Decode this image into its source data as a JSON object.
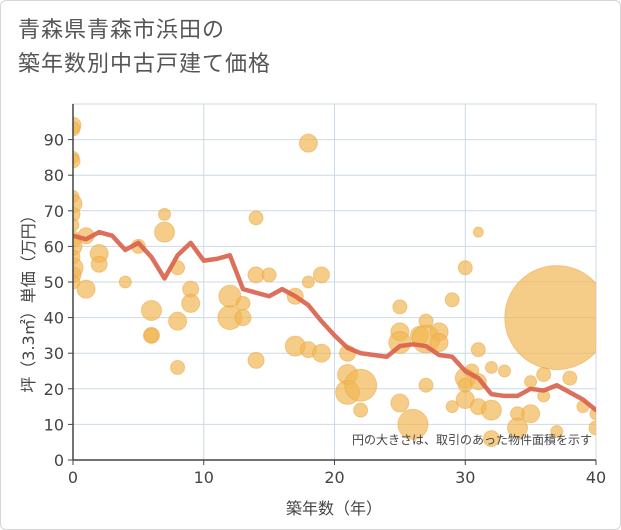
{
  "chart_data": {
    "type": "scatter",
    "title_lines": [
      "青森県青森市浜田の",
      "築年数別中古戸建て価格"
    ],
    "xlabel": "築年数（年）",
    "ylabel": "坪（3.3㎡）単価（万円）",
    "xlim": [
      0,
      40
    ],
    "ylim": [
      0,
      100
    ],
    "xticks": [
      "0",
      "10",
      "20",
      "30",
      "40"
    ],
    "yticks": [
      "0",
      "10",
      "20",
      "30",
      "40",
      "50",
      "60",
      "70",
      "80",
      "90"
    ],
    "note": "円の大きさは、取引のあった物件面積を示す",
    "colors": {
      "bubble": "#f2b54f",
      "line": "#d9604a",
      "grid": "#ccd9e6",
      "axis": "#444444"
    },
    "points": [
      {
        "x": 0,
        "y": 94,
        "s": 8
      },
      {
        "x": 0,
        "y": 93,
        "s": 7
      },
      {
        "x": 0,
        "y": 85,
        "s": 6
      },
      {
        "x": 0,
        "y": 84,
        "s": 7
      },
      {
        "x": 0,
        "y": 74,
        "s": 6
      },
      {
        "x": 0,
        "y": 72,
        "s": 9
      },
      {
        "x": 0,
        "y": 69,
        "s": 7
      },
      {
        "x": 0,
        "y": 66,
        "s": 6
      },
      {
        "x": 0,
        "y": 62,
        "s": 8
      },
      {
        "x": 0,
        "y": 60,
        "s": 9
      },
      {
        "x": 0,
        "y": 57,
        "s": 7
      },
      {
        "x": 0,
        "y": 54,
        "s": 10
      },
      {
        "x": 0,
        "y": 52,
        "s": 8
      },
      {
        "x": 0,
        "y": 50,
        "s": 7
      },
      {
        "x": 1,
        "y": 63,
        "s": 8
      },
      {
        "x": 1,
        "y": 48,
        "s": 9
      },
      {
        "x": 2,
        "y": 58,
        "s": 9
      },
      {
        "x": 2,
        "y": 55,
        "s": 8
      },
      {
        "x": 4,
        "y": 50,
        "s": 6
      },
      {
        "x": 5,
        "y": 60,
        "s": 7
      },
      {
        "x": 6,
        "y": 42,
        "s": 10
      },
      {
        "x": 6,
        "y": 35,
        "s": 8
      },
      {
        "x": 6,
        "y": 35,
        "s": 7
      },
      {
        "x": 7,
        "y": 69,
        "s": 6
      },
      {
        "x": 7,
        "y": 64,
        "s": 10
      },
      {
        "x": 8,
        "y": 54,
        "s": 7
      },
      {
        "x": 8,
        "y": 39,
        "s": 9
      },
      {
        "x": 8,
        "y": 26,
        "s": 7
      },
      {
        "x": 9,
        "y": 48,
        "s": 8
      },
      {
        "x": 9,
        "y": 44,
        "s": 9
      },
      {
        "x": 12,
        "y": 46,
        "s": 11
      },
      {
        "x": 12,
        "y": 40,
        "s": 12
      },
      {
        "x": 13,
        "y": 44,
        "s": 7
      },
      {
        "x": 13,
        "y": 40,
        "s": 8
      },
      {
        "x": 14,
        "y": 68,
        "s": 7
      },
      {
        "x": 14,
        "y": 52,
        "s": 8
      },
      {
        "x": 14,
        "y": 28,
        "s": 8
      },
      {
        "x": 15,
        "y": 52,
        "s": 7
      },
      {
        "x": 17,
        "y": 46,
        "s": 8
      },
      {
        "x": 17,
        "y": 32,
        "s": 10
      },
      {
        "x": 18,
        "y": 89,
        "s": 9
      },
      {
        "x": 18,
        "y": 50,
        "s": 6
      },
      {
        "x": 18,
        "y": 31,
        "s": 8
      },
      {
        "x": 19,
        "y": 52,
        "s": 8
      },
      {
        "x": 19,
        "y": 30,
        "s": 9
      },
      {
        "x": 21,
        "y": 30,
        "s": 8
      },
      {
        "x": 21,
        "y": 24,
        "s": 10
      },
      {
        "x": 21,
        "y": 19,
        "s": 12
      },
      {
        "x": 22,
        "y": 21,
        "s": 16
      },
      {
        "x": 22,
        "y": 14,
        "s": 7
      },
      {
        "x": 25,
        "y": 43,
        "s": 7
      },
      {
        "x": 25,
        "y": 36,
        "s": 9
      },
      {
        "x": 25,
        "y": 33,
        "s": 11
      },
      {
        "x": 25,
        "y": 16,
        "s": 9
      },
      {
        "x": 26,
        "y": 10,
        "s": 15
      },
      {
        "x": 26.5,
        "y": 35,
        "s": 9
      },
      {
        "x": 27,
        "y": 39,
        "s": 7
      },
      {
        "x": 27,
        "y": 34,
        "s": 14
      },
      {
        "x": 27,
        "y": 21,
        "s": 7
      },
      {
        "x": 28,
        "y": 36,
        "s": 9
      },
      {
        "x": 28,
        "y": 33,
        "s": 9
      },
      {
        "x": 29,
        "y": 45,
        "s": 7
      },
      {
        "x": 29,
        "y": 15,
        "s": 6
      },
      {
        "x": 30,
        "y": 54,
        "s": 7
      },
      {
        "x": 30,
        "y": 23,
        "s": 10
      },
      {
        "x": 30,
        "y": 21,
        "s": 7
      },
      {
        "x": 30,
        "y": 17,
        "s": 9
      },
      {
        "x": 30.5,
        "y": 25,
        "s": 7
      },
      {
        "x": 31,
        "y": 64,
        "s": 5
      },
      {
        "x": 31,
        "y": 31,
        "s": 7
      },
      {
        "x": 31,
        "y": 22,
        "s": 8
      },
      {
        "x": 31,
        "y": 15,
        "s": 8
      },
      {
        "x": 32,
        "y": 26,
        "s": 6
      },
      {
        "x": 32,
        "y": 14,
        "s": 10
      },
      {
        "x": 32,
        "y": 6,
        "s": 8
      },
      {
        "x": 33,
        "y": 25,
        "s": 6
      },
      {
        "x": 34,
        "y": 13,
        "s": 7
      },
      {
        "x": 34,
        "y": 9,
        "s": 10
      },
      {
        "x": 35,
        "y": 22,
        "s": 6
      },
      {
        "x": 35,
        "y": 13,
        "s": 9
      },
      {
        "x": 36,
        "y": 24,
        "s": 7
      },
      {
        "x": 36,
        "y": 18,
        "s": 6
      },
      {
        "x": 37,
        "y": 40,
        "s": 52
      },
      {
        "x": 37,
        "y": 8,
        "s": 6
      },
      {
        "x": 38,
        "y": 23,
        "s": 7
      },
      {
        "x": 39,
        "y": 15,
        "s": 6
      },
      {
        "x": 40,
        "y": 13,
        "s": 6
      },
      {
        "x": 40,
        "y": 9,
        "s": 7
      }
    ],
    "line": {
      "x": [
        0,
        1,
        2,
        3,
        4,
        5,
        6,
        7,
        8,
        9,
        10,
        11,
        12,
        13,
        14,
        15,
        16,
        17,
        18,
        19,
        20,
        21,
        22,
        23,
        24,
        25,
        26,
        27,
        28,
        29,
        30,
        31,
        32,
        33,
        34,
        35,
        36,
        37,
        38,
        39,
        40
      ],
      "y": [
        63,
        62,
        64,
        63,
        59,
        61,
        57,
        51,
        57.5,
        61,
        56,
        56.5,
        57.5,
        48,
        47,
        46,
        48,
        46,
        43.5,
        39,
        35,
        31.5,
        30,
        29.5,
        29,
        32,
        32.5,
        32,
        29.5,
        29,
        25,
        23,
        18.5,
        18,
        18,
        20,
        19.5,
        21,
        19,
        17,
        14
      ]
    }
  }
}
